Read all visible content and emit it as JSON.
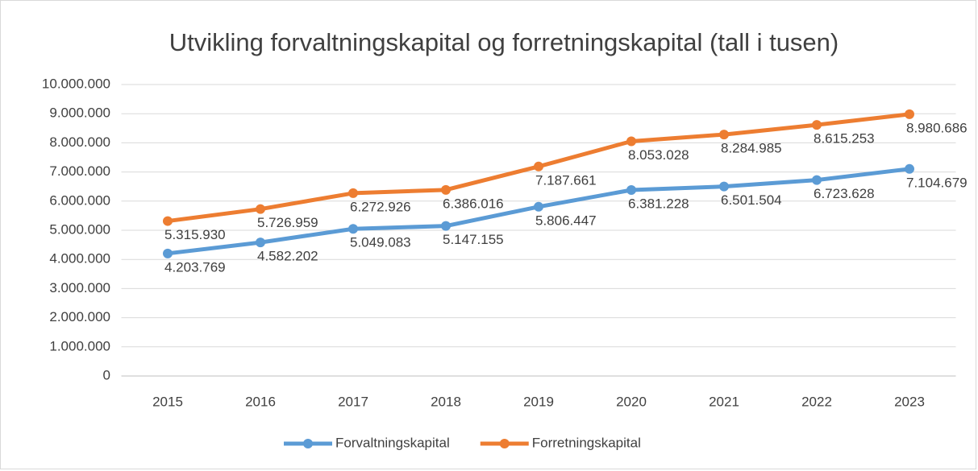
{
  "chart_data": {
    "type": "line",
    "title": "Utvikling forvaltningskapital og forretningskapital (tall i tusen)",
    "categories": [
      "2015",
      "2016",
      "2017",
      "2018",
      "2019",
      "2020",
      "2021",
      "2022",
      "2023"
    ],
    "series": [
      {
        "name": "Forvaltningskapital",
        "color": "#5b9bd5",
        "values": [
          4203769,
          4582202,
          5049083,
          5147155,
          5806447,
          6381228,
          6501504,
          6723628,
          7104679
        ],
        "value_labels": [
          "4.203.769",
          "4.582.202",
          "5.049.083",
          "5.147.155",
          "5.806.447",
          "6.381.228",
          "6.501.504",
          "6.723.628",
          "7.104.679"
        ]
      },
      {
        "name": "Forretningskapital",
        "color": "#ed7d31",
        "values": [
          5315930,
          5726959,
          6272926,
          6386016,
          7187661,
          8053028,
          8284985,
          8615253,
          8980686
        ],
        "value_labels": [
          "5.315.930",
          "5.726.959",
          "6.272.926",
          "6.386.016",
          "7.187.661",
          "8.053.028",
          "8.284.985",
          "8.615.253",
          "8.980.686"
        ]
      }
    ],
    "ylim": [
      0,
      10000000
    ],
    "yticks": [
      0,
      {
        "value": 1000000,
        "label": "1.000.000"
      },
      {
        "value": 2000000,
        "label": "2.000.000"
      },
      {
        "value": 3000000,
        "label": "3.000.000"
      },
      {
        "value": 4000000,
        "label": "4.000.000"
      },
      {
        "value": 5000000,
        "label": "5.000.000"
      },
      {
        "value": 6000000,
        "label": "6.000.000"
      },
      {
        "value": 7000000,
        "label": "7.000.000"
      },
      {
        "value": 8000000,
        "label": "8.000.000"
      },
      {
        "value": 9000000,
        "label": "9.000.000"
      },
      {
        "value": 10000000,
        "label": "10.000.000"
      }
    ],
    "grid": true,
    "legend": "bottom"
  }
}
